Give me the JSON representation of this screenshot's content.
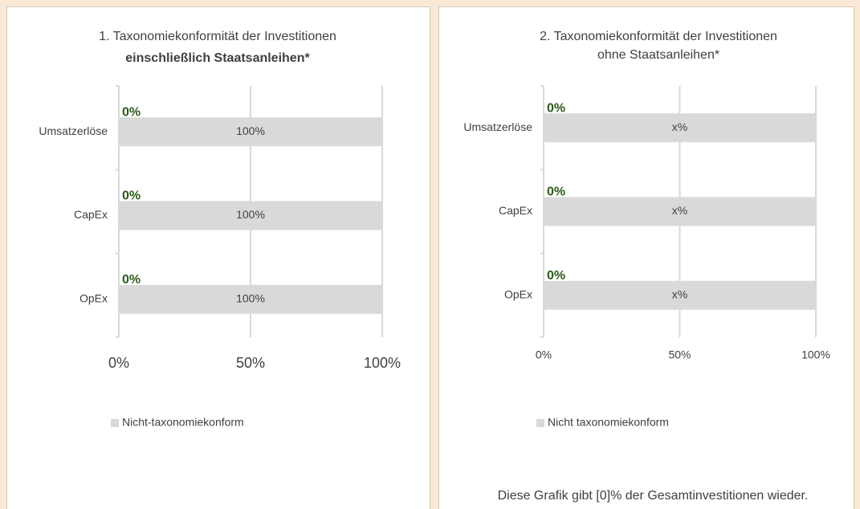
{
  "chart_data": [
    {
      "type": "bar",
      "orientation": "horizontal",
      "stacked": true,
      "title": "1. Taxonomiekonformität der Investitionen",
      "subtitle": "einschließlich Staatsanleihen*",
      "categories": [
        "Umsatzerlöse",
        "CapEx",
        "OpEx"
      ],
      "series": [
        {
          "color": "#2d5a1b",
          "values": [
            0,
            0,
            0
          ],
          "value_labels": [
            "0%",
            "0%",
            "0%"
          ]
        },
        {
          "name": "Nicht-taxonomiekonform",
          "color": "#d9d9d9",
          "values": [
            100,
            100,
            100
          ],
          "value_labels": [
            "100%",
            "100%",
            "100%"
          ]
        }
      ],
      "xlim": [
        0,
        100
      ],
      "xticks": [
        {
          "value": 0,
          "label": "0%"
        },
        {
          "value": 50,
          "label": "50%"
        },
        {
          "value": 100,
          "label": "100%"
        }
      ],
      "grid": true,
      "legend": "bottom"
    },
    {
      "type": "bar",
      "orientation": "horizontal",
      "stacked": true,
      "title": "2. Taxonomiekonformität der Investitionen",
      "subtitle": "ohne Staatsanleihen*",
      "categories": [
        "Umsatzerlöse",
        "CapEx",
        "OpEx"
      ],
      "series": [
        {
          "color": "#2d5a1b",
          "values": [
            0,
            0,
            0
          ],
          "value_labels": [
            "0%",
            "0%",
            "0%"
          ]
        },
        {
          "name": "Nicht taxonomiekonform",
          "color": "#d9d9d9",
          "values": [
            100,
            100,
            100
          ],
          "value_labels": [
            "x%",
            "x%",
            "x%"
          ]
        }
      ],
      "xlim": [
        0,
        100
      ],
      "xticks": [
        {
          "value": 0,
          "label": "0%"
        },
        {
          "value": 50,
          "label": "50%"
        },
        {
          "value": 100,
          "label": "100%"
        }
      ],
      "grid": true,
      "legend": "bottom",
      "annotation": "Diese Grafik gibt [0]% der Gesamtinvestitionen wieder."
    }
  ]
}
